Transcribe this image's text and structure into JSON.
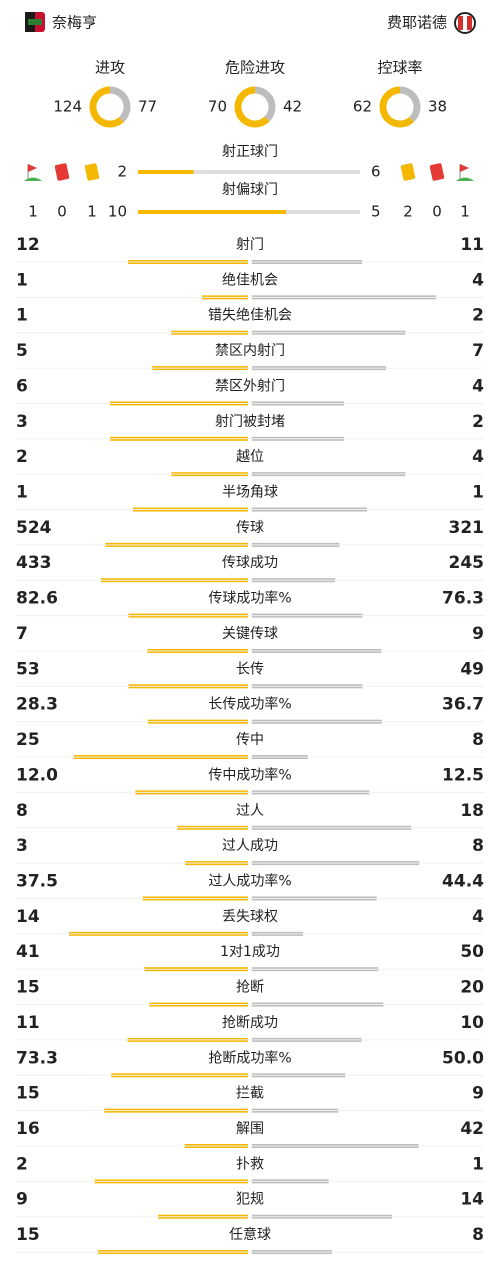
{
  "header": {
    "home": "奈梅亨",
    "away": "费耶诺德"
  },
  "summary": [
    {
      "label": "进攻",
      "home": 124,
      "away": 77
    },
    {
      "label": "危险进攻",
      "home": 70,
      "away": 42
    },
    {
      "label": "控球率",
      "home": 62,
      "away": 38
    }
  ],
  "shots": [
    {
      "label": "射正球门",
      "home": 2,
      "away": 6
    },
    {
      "label": "射偏球门",
      "home": 10,
      "away": 5
    }
  ],
  "cards": {
    "home": [
      1,
      0,
      1
    ],
    "away": [
      2,
      0,
      1
    ]
  },
  "stats": [
    {
      "label": "射门",
      "home": 12,
      "away": 11
    },
    {
      "label": "绝佳机会",
      "home": 1,
      "away": 4
    },
    {
      "label": "错失绝佳机会",
      "home": 1,
      "away": 2
    },
    {
      "label": "禁区内射门",
      "home": 5,
      "away": 7
    },
    {
      "label": "禁区外射门",
      "home": 6,
      "away": 4
    },
    {
      "label": "射门被封堵",
      "home": 3,
      "away": 2
    },
    {
      "label": "越位",
      "home": 2,
      "away": 4
    },
    {
      "label": "半场角球",
      "home": 1,
      "away": 1
    },
    {
      "label": "传球",
      "home": 524,
      "away": 321
    },
    {
      "label": "传球成功",
      "home": 433,
      "away": 245
    },
    {
      "label": "传球成功率%",
      "home": 82.6,
      "away": 76.3
    },
    {
      "label": "关键传球",
      "home": 7,
      "away": 9
    },
    {
      "label": "长传",
      "home": 53,
      "away": 49
    },
    {
      "label": "长传成功率%",
      "home": 28.3,
      "away": 36.7
    },
    {
      "label": "传中",
      "home": 25,
      "away": 8
    },
    {
      "label": "传中成功率%",
      "home": 12,
      "home_label": "12.0",
      "away": 12.5
    },
    {
      "label": "过人",
      "home": 8,
      "away": 18
    },
    {
      "label": "过人成功",
      "home": 3,
      "away": 8
    },
    {
      "label": "过人成功率%",
      "home": 37.5,
      "away": 44.4
    },
    {
      "label": "丢失球权",
      "home": 14,
      "away": 4
    },
    {
      "label": "1对1成功",
      "home": 41,
      "away": 50
    },
    {
      "label": "抢断",
      "home": 15,
      "away": 20
    },
    {
      "label": "抢断成功",
      "home": 11,
      "away": 10
    },
    {
      "label": "抢断成功率%",
      "home": 73.3,
      "away": 50,
      "away_label": "50.0"
    },
    {
      "label": "拦截",
      "home": 15,
      "away": 9
    },
    {
      "label": "解围",
      "home": 16,
      "away": 42
    },
    {
      "label": "扑救",
      "home": 2,
      "away": 1
    },
    {
      "label": "犯规",
      "home": 9,
      "away": 14
    },
    {
      "label": "任意球",
      "home": 15,
      "away": 8
    }
  ]
}
